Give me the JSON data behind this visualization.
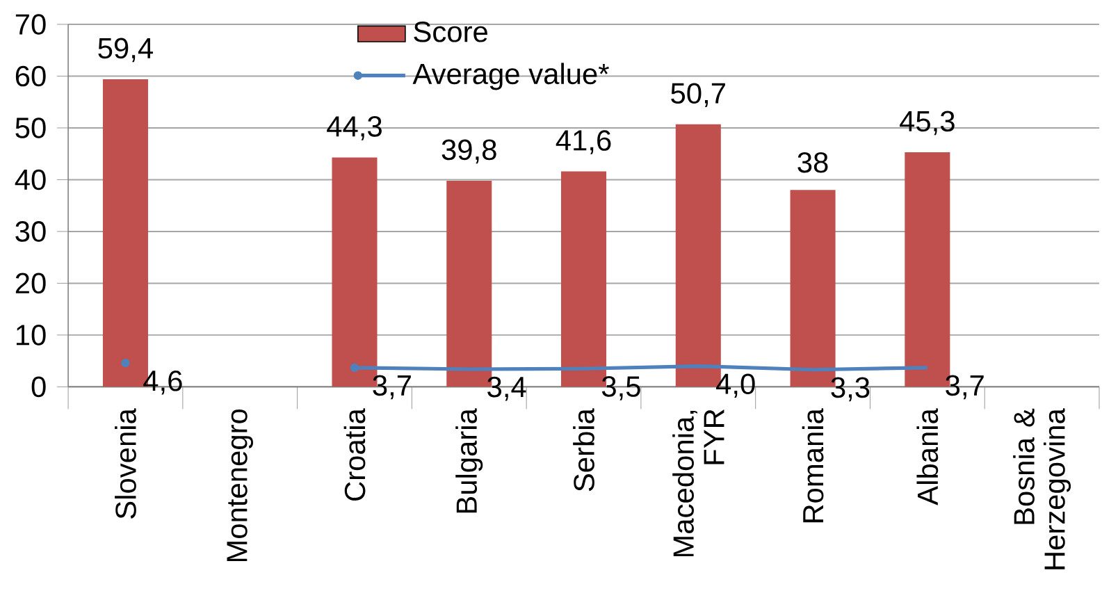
{
  "chart_data": {
    "type": "bar",
    "categories": [
      "Slovenia",
      "Montenegro",
      "Croatia",
      "Bulgaria",
      "Serbia",
      "Macedonia, FYR",
      "Romania",
      "Albania",
      "Bosnia & Herzegovina"
    ],
    "series": [
      {
        "name": "Score",
        "color": "#c0504d",
        "values": [
          59.4,
          null,
          44.3,
          39.8,
          41.6,
          50.7,
          38,
          45.3,
          null
        ],
        "value_labels": [
          "59,4",
          null,
          "44,3",
          "39,8",
          "41,6",
          "50,7",
          "38",
          "45,3",
          null
        ]
      },
      {
        "name": "Average value*",
        "type": "line",
        "color": "#4f81bd",
        "values": [
          4.6,
          null,
          3.7,
          3.4,
          3.5,
          4.0,
          3.3,
          3.7,
          null
        ],
        "value_labels": [
          "4,6",
          null,
          "3,7",
          "3,4",
          "3,5",
          "4,0",
          "3,3",
          "3,7",
          null
        ]
      }
    ],
    "ylim": [
      0,
      70
    ],
    "yticks": [
      0,
      10,
      20,
      30,
      40,
      50,
      60,
      70
    ],
    "grid": "y",
    "legend": "top"
  }
}
